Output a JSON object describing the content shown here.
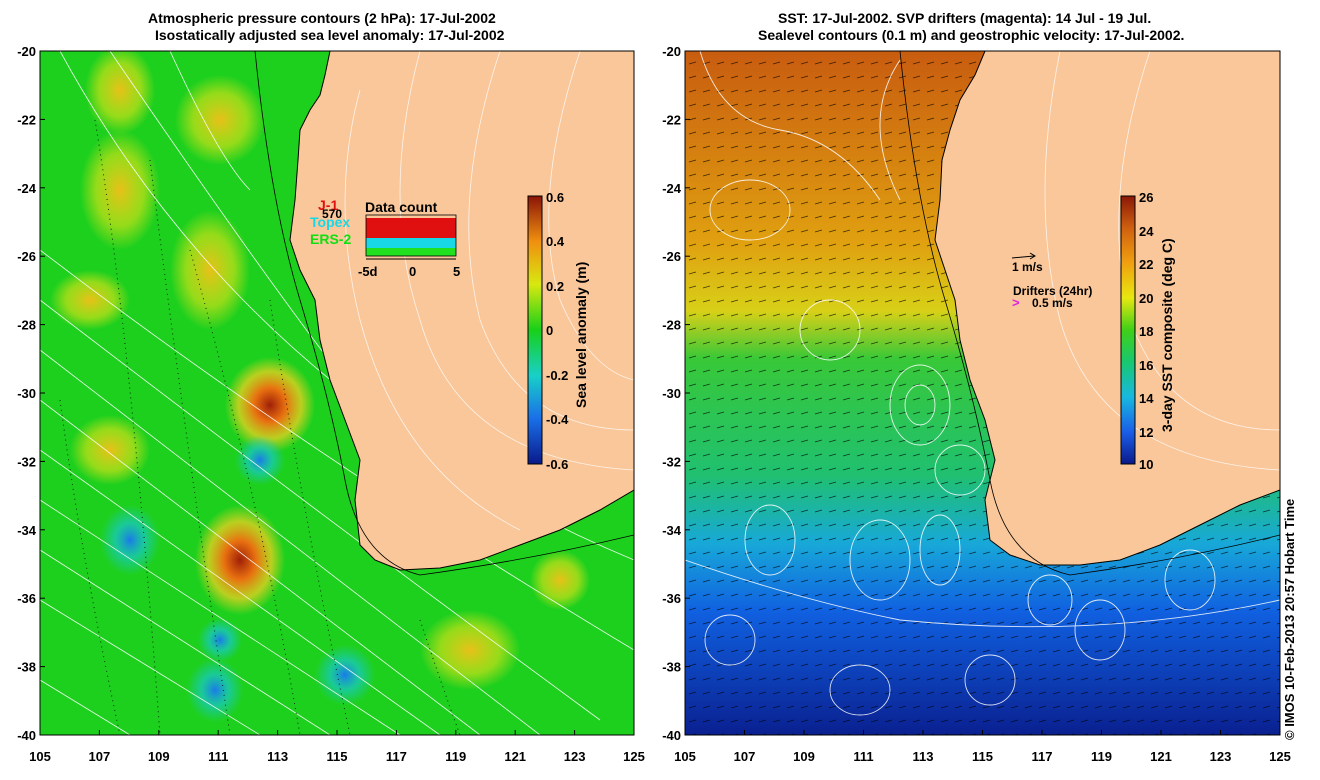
{
  "left_panel": {
    "title_line1": "Atmospheric pressure contours (2 hPa): 17-Jul-2002",
    "title_line2": "Isostatically adjusted sea level anomaly: 17-Jul-2002",
    "colorbar": {
      "label": "Sea level anomaly (m)",
      "ticks": [
        "0.6",
        "0.4",
        "0.2",
        "0",
        "-0.2",
        "-0.4",
        "-0.6"
      ]
    },
    "legend": {
      "j1": "J-1",
      "topex": "Topex",
      "ers2": "ERS-2",
      "count": "570",
      "title": "Data count",
      "axis_labels": [
        "-5d",
        "0",
        "5"
      ]
    }
  },
  "right_panel": {
    "title_line1": "SST: 17-Jul-2002. SVP drifters (magenta): 14 Jul - 19 Jul.",
    "title_line2": "Sealevel contours (0.1 m) and geostrophic velocity: 17-Jul-2002.",
    "colorbar": {
      "label": "3-day SST composite (deg C)",
      "ticks": [
        "26",
        "24",
        "22",
        "20",
        "18",
        "16",
        "14",
        "12",
        "10"
      ]
    },
    "vector_key": "1 m/s",
    "drifter_key_title": "Drifters (24hr)",
    "drifter_key_value": "0.5 m/s"
  },
  "y_ticks": [
    "-20",
    "-22",
    "-24",
    "-26",
    "-28",
    "-30",
    "-32",
    "-34",
    "-36",
    "-38",
    "-40"
  ],
  "x_ticks": [
    "105",
    "107",
    "109",
    "111",
    "113",
    "115",
    "117",
    "119",
    "121",
    "123",
    "125"
  ],
  "copyright": "© IMOS 10-Feb-2013 20:57 Hobart Time",
  "colors": {
    "land": "#fac79a",
    "ocean_green": "#1ed01e",
    "coast": "#000000"
  }
}
